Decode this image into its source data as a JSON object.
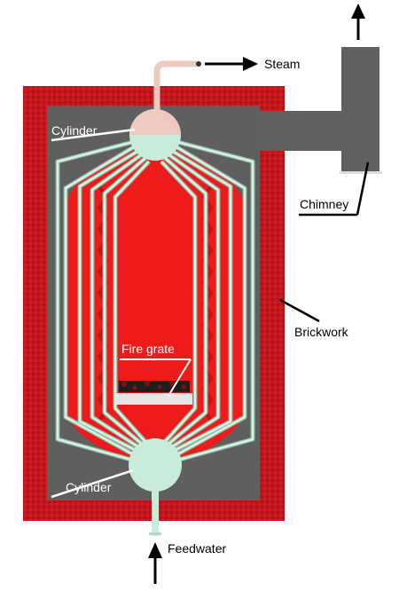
{
  "labels": {
    "steam": "Steam",
    "cylinder_top": "Cylinder",
    "chimney": "Chimney",
    "brickwork": "Brickwork",
    "fire_grate": "Fire grate",
    "cylinder_bottom": "Cylinder",
    "feedwater": "Feedwater"
  },
  "colors": {
    "brickwork": "#c8151b",
    "furnace_interior": "#5f5f5f",
    "flame": "#ef1a1a",
    "tube": "#c9ecda",
    "water": "#c9ecda",
    "steam_space": "#eec9c0",
    "chimney": "#606060",
    "arrow": "#000000"
  }
}
